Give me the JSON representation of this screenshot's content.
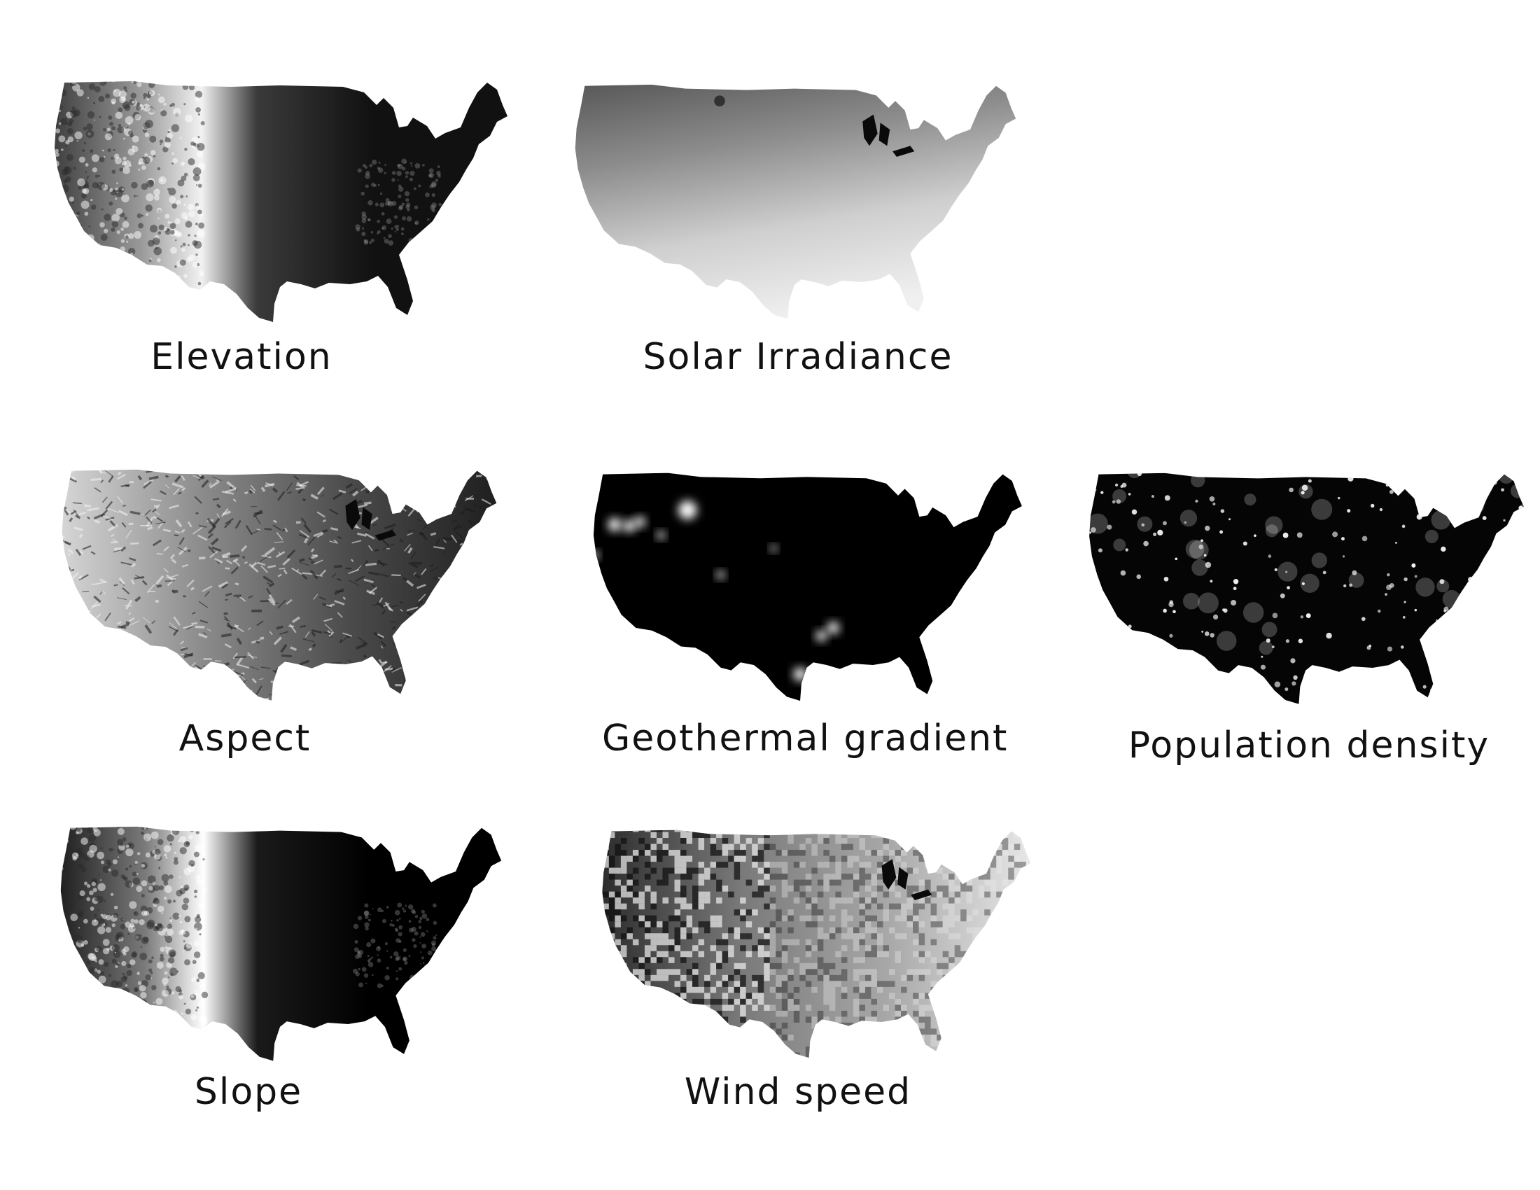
{
  "panels": [
    {
      "id": "elevation",
      "caption": "Elevation",
      "colors": [
        "#f2f2f2",
        "#9a9a9a",
        "#3a3a3a",
        "#111111"
      ],
      "pattern": "west-bright"
    },
    {
      "id": "solar",
      "caption": "Solar Irradiance",
      "colors": [
        "#555555",
        "#8c8c8c",
        "#cfcfcf",
        "#f0f0f0"
      ],
      "pattern": "south-bright"
    },
    {
      "id": "aspect",
      "caption": "Aspect",
      "colors": [
        "#d8d8d8",
        "#8a8a8a",
        "#4a4a4a",
        "#1e1e1e"
      ],
      "pattern": "texture"
    },
    {
      "id": "geothermal",
      "caption": "Geothermal gradient",
      "colors": [
        "#000000",
        "#ffffff"
      ],
      "pattern": "hotspots"
    },
    {
      "id": "population",
      "caption": "Population density",
      "colors": [
        "#050505",
        "#ffffff"
      ],
      "pattern": "dots"
    },
    {
      "id": "slope",
      "caption": "Slope",
      "colors": [
        "#ffffff",
        "#7a7a7a",
        "#1a1a1a",
        "#000000"
      ],
      "pattern": "west-bright"
    },
    {
      "id": "wind",
      "caption": "Wind speed",
      "colors": [
        "#2a2a2a",
        "#7a7a7a",
        "#a8a8a8",
        "#e8e8e8"
      ],
      "pattern": "patchy"
    }
  ]
}
